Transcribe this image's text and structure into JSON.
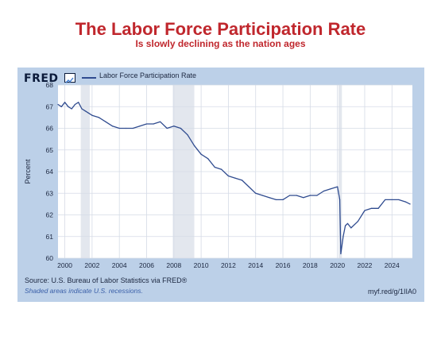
{
  "page": {
    "heading": "The Labor Force Participation Rate",
    "subheading": "Is slowly declining as the nation ages"
  },
  "fred": {
    "logo_text": "FRED",
    "legend_label": "Labor Force Participation Rate",
    "source": "Source: U.S. Bureau of Labor Statistics via FRED®",
    "recession_note": "Shaded areas indicate U.S. recessions.",
    "url": "myf.red/g/1IIA0"
  },
  "colors": {
    "heading": "#c0272d",
    "series": "#2f4b8f",
    "plot_bg": "#ffffff",
    "card_bg": "#bcd0e8",
    "recession": "#e3e7ee",
    "grid": "#d5dbe6"
  },
  "chart_data": {
    "type": "line",
    "title": "The Labor Force Participation Rate",
    "subtitle": "Is slowly declining as the nation ages",
    "xlabel": "",
    "ylabel": "Percent",
    "xlim": [
      1999.5,
      2025.5
    ],
    "ylim": [
      60,
      68
    ],
    "x_ticks": [
      2000,
      2002,
      2004,
      2006,
      2008,
      2010,
      2012,
      2014,
      2016,
      2018,
      2020,
      2022,
      2024
    ],
    "y_ticks": [
      60,
      61,
      62,
      63,
      64,
      65,
      66,
      67,
      68
    ],
    "grid": true,
    "legend": "top-left",
    "recessions": [
      [
        2001.17,
        2001.83
      ],
      [
        2007.92,
        2009.5
      ],
      [
        2020.08,
        2020.33
      ]
    ],
    "series": [
      {
        "name": "Labor Force Participation Rate",
        "x": [
          1999.5,
          1999.75,
          2000.0,
          2000.25,
          2000.5,
          2000.75,
          2001.0,
          2001.25,
          2001.5,
          2001.75,
          2002.0,
          2002.5,
          2003.0,
          2003.5,
          2004.0,
          2004.5,
          2005.0,
          2005.5,
          2006.0,
          2006.5,
          2007.0,
          2007.5,
          2008.0,
          2008.5,
          2009.0,
          2009.5,
          2010.0,
          2010.5,
          2011.0,
          2011.5,
          2012.0,
          2012.5,
          2013.0,
          2013.5,
          2014.0,
          2014.5,
          2015.0,
          2015.5,
          2016.0,
          2016.5,
          2017.0,
          2017.5,
          2018.0,
          2018.5,
          2019.0,
          2019.5,
          2020.0,
          2020.17,
          2020.25,
          2020.42,
          2020.58,
          2020.75,
          2021.0,
          2021.5,
          2022.0,
          2022.5,
          2023.0,
          2023.5,
          2024.0,
          2024.5,
          2025.0,
          2025.33
        ],
        "values": [
          67.1,
          67.0,
          67.2,
          67.0,
          66.9,
          67.1,
          67.2,
          66.9,
          66.8,
          66.7,
          66.6,
          66.5,
          66.3,
          66.1,
          66.0,
          66.0,
          66.0,
          66.1,
          66.2,
          66.2,
          66.3,
          66.0,
          66.1,
          66.0,
          65.7,
          65.2,
          64.8,
          64.6,
          64.2,
          64.1,
          63.8,
          63.7,
          63.6,
          63.3,
          63.0,
          62.9,
          62.8,
          62.7,
          62.7,
          62.9,
          62.9,
          62.8,
          62.9,
          62.9,
          63.1,
          63.2,
          63.3,
          62.7,
          60.2,
          61.0,
          61.5,
          61.6,
          61.4,
          61.7,
          62.2,
          62.3,
          62.3,
          62.7,
          62.7,
          62.7,
          62.6,
          62.5
        ]
      }
    ]
  }
}
